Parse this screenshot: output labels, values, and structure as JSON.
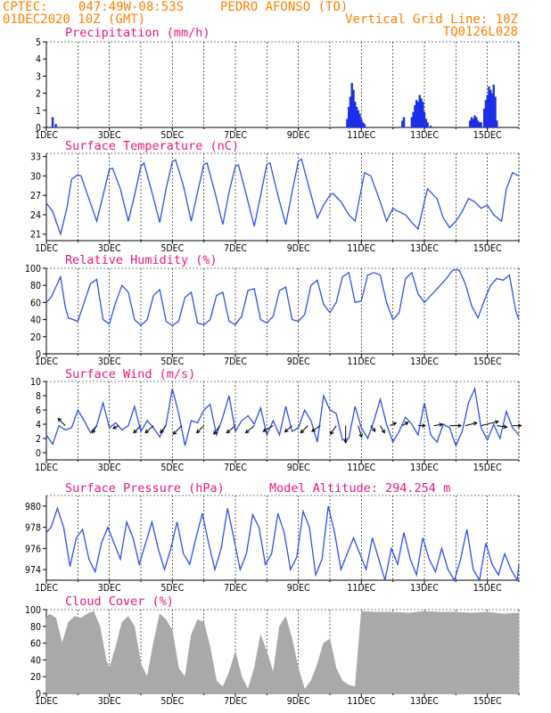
{
  "header": {
    "source": "CPTEC:",
    "coords": "047:49W-08:53S",
    "location": "PEDRO AFONSO (TO)",
    "run": "01DEC2020 10Z (GMT)",
    "grid_note": "Vertical Grid Line: 10Z",
    "code": "TQ0126L028"
  },
  "extra_title": "Model Altitude: 294.254 m",
  "colors": {
    "header": "#ff7f00",
    "title": "#e8167f",
    "series": "#3050e8",
    "bars": "#1c2fe8",
    "wind": "#000000",
    "cloud": "#a9a9a9"
  },
  "chart_data": [
    {
      "id": "precip",
      "type": "bar",
      "title": "Precipitation (mm/h)",
      "ylim": [
        0,
        5
      ],
      "yticks": [
        0,
        1,
        2,
        3,
        4,
        5
      ],
      "xticks": [
        "1DEC",
        "3DEC",
        "5DEC",
        "7DEC",
        "9DEC",
        "11DEC",
        "13DEC",
        "15DEC"
      ],
      "x": [
        0.2,
        0.3,
        9.55,
        9.6,
        9.65,
        9.7,
        9.75,
        9.8,
        9.85,
        9.9,
        9.95,
        10.0,
        10.05,
        10.1,
        11.3,
        11.35,
        11.6,
        11.65,
        11.7,
        11.75,
        11.8,
        11.85,
        11.9,
        11.95,
        12.0,
        12.05,
        12.1,
        12.2,
        13.45,
        13.5,
        13.55,
        13.6,
        13.65,
        13.7,
        13.75,
        13.8,
        13.9,
        13.95,
        14.0,
        14.05,
        14.1,
        14.15,
        14.2,
        14.25,
        14.3
      ],
      "values": [
        0.6,
        0.2,
        0.5,
        1.2,
        1.8,
        2.6,
        2.2,
        1.5,
        1.2,
        1.0,
        0.8,
        0.5,
        0.3,
        0.2,
        0.4,
        0.6,
        0.6,
        0.9,
        1.3,
        1.6,
        1.5,
        1.9,
        1.7,
        1.5,
        0.9,
        0.5,
        0.3,
        0.1,
        0.4,
        0.6,
        0.5,
        0.7,
        0.6,
        0.4,
        0.3,
        0.3,
        1.1,
        1.6,
        1.9,
        2.4,
        2.2,
        2.0,
        2.5,
        1.8,
        0.4
      ]
    },
    {
      "id": "temp",
      "type": "line",
      "title": "Surface Temperature (nC)",
      "ylim": [
        20,
        33.5
      ],
      "yticks": [
        21,
        24,
        27,
        30,
        33
      ],
      "xticks": [
        "1DEC",
        "3DEC",
        "5DEC",
        "7DEC",
        "9DEC",
        "11DEC",
        "13DEC",
        "15DEC"
      ],
      "x": [
        0,
        0.2,
        0.45,
        0.65,
        0.8,
        1.0,
        1.1,
        1.35,
        1.6,
        1.8,
        2.0,
        2.1,
        2.35,
        2.6,
        2.8,
        3.0,
        3.1,
        3.35,
        3.6,
        3.8,
        4.0,
        4.1,
        4.35,
        4.6,
        4.8,
        5.0,
        5.1,
        5.35,
        5.6,
        5.8,
        6.0,
        6.1,
        6.35,
        6.6,
        6.8,
        7.0,
        7.1,
        7.35,
        7.6,
        7.8,
        8.0,
        8.1,
        8.35,
        8.6,
        8.8,
        9.0,
        9.1,
        9.35,
        9.6,
        9.8,
        10.0,
        10.1,
        10.3,
        10.6,
        10.8,
        11.0,
        11.1,
        11.4,
        11.6,
        11.8,
        12.0,
        12.1,
        12.4,
        12.6,
        12.8,
        13.0,
        13.2,
        13.4,
        13.6,
        13.8,
        14.0,
        14.2,
        14.45,
        14.6,
        14.8,
        15.0
      ],
      "values": [
        25.8,
        24.5,
        21.0,
        25.0,
        29.5,
        30.2,
        30.0,
        26.5,
        23.0,
        27.0,
        31.0,
        31.2,
        28.0,
        23.0,
        27.0,
        31.5,
        32.0,
        27.5,
        22.8,
        28.0,
        32.2,
        32.5,
        28.5,
        23.0,
        27.5,
        31.8,
        32.0,
        27.5,
        22.5,
        27.5,
        31.5,
        31.7,
        27.0,
        22.2,
        27.0,
        31.8,
        32.0,
        27.0,
        22.5,
        27.5,
        32.3,
        32.6,
        28.0,
        23.5,
        25.5,
        27.0,
        27.3,
        26.0,
        24.0,
        23.0,
        28.0,
        30.5,
        30.0,
        26.0,
        23.0,
        25.0,
        24.7,
        24.0,
        22.8,
        21.8,
        26.0,
        28.0,
        26.5,
        23.5,
        22.0,
        23.0,
        24.5,
        26.5,
        26.0,
        25.0,
        25.5,
        24.0,
        23.0,
        28.0,
        30.5,
        30.0
      ]
    },
    {
      "id": "rh",
      "type": "line",
      "title": "Relative Humidity (%)",
      "ylim": [
        0,
        100
      ],
      "yticks": [
        0,
        20,
        40,
        60,
        80,
        100
      ],
      "xticks": [
        "1DEC",
        "3DEC",
        "5DEC",
        "7DEC",
        "9DEC",
        "11DEC",
        "13DEC",
        "15DEC"
      ],
      "x": [
        0,
        0.15,
        0.3,
        0.45,
        0.6,
        0.7,
        1.0,
        1.2,
        1.4,
        1.6,
        1.8,
        2.0,
        2.2,
        2.4,
        2.6,
        2.8,
        3.0,
        3.2,
        3.4,
        3.6,
        3.8,
        4.0,
        4.2,
        4.4,
        4.6,
        4.8,
        5.0,
        5.2,
        5.4,
        5.6,
        5.8,
        6.0,
        6.2,
        6.4,
        6.6,
        6.8,
        7.0,
        7.2,
        7.4,
        7.6,
        7.8,
        8.0,
        8.2,
        8.4,
        8.6,
        8.8,
        9.0,
        9.2,
        9.4,
        9.6,
        9.8,
        10.0,
        10.2,
        10.4,
        10.6,
        10.8,
        11.0,
        11.2,
        11.4,
        11.6,
        11.8,
        12.0,
        12.3,
        12.5,
        12.7,
        12.9,
        13.1,
        13.3,
        13.5,
        13.7,
        13.9,
        14.1,
        14.3,
        14.5,
        14.7,
        14.9,
        15.0
      ],
      "values": [
        60,
        66,
        78,
        90,
        55,
        42,
        38,
        60,
        82,
        87,
        40,
        35,
        60,
        80,
        72,
        40,
        33,
        40,
        68,
        75,
        38,
        33,
        38,
        66,
        72,
        36,
        34,
        40,
        68,
        72,
        38,
        34,
        44,
        74,
        76,
        40,
        36,
        44,
        74,
        78,
        40,
        38,
        46,
        80,
        86,
        58,
        48,
        60,
        90,
        95,
        60,
        62,
        92,
        95,
        92,
        60,
        40,
        48,
        88,
        95,
        70,
        60,
        72,
        80,
        88,
        98,
        98,
        82,
        56,
        42,
        62,
        80,
        88,
        86,
        92,
        50,
        40
      ]
    },
    {
      "id": "wind",
      "type": "line",
      "title": "Surface Wind (m/s)",
      "ylim": [
        -1,
        10
      ],
      "yticks": [
        0,
        2,
        4,
        6,
        8,
        10
      ],
      "xticks": [
        "1DEC",
        "3DEC",
        "5DEC",
        "7DEC",
        "9DEC",
        "11DEC",
        "13DEC",
        "15DEC"
      ],
      "x": [
        0,
        0.2,
        0.4,
        0.6,
        0.8,
        1.0,
        1.2,
        1.4,
        1.6,
        1.8,
        2.0,
        2.2,
        2.4,
        2.6,
        2.8,
        3.0,
        3.2,
        3.4,
        3.6,
        3.8,
        4.0,
        4.2,
        4.4,
        4.6,
        4.8,
        5.0,
        5.2,
        5.4,
        5.6,
        5.8,
        6.0,
        6.2,
        6.4,
        6.6,
        6.8,
        7.0,
        7.2,
        7.4,
        7.6,
        7.8,
        8.0,
        8.2,
        8.4,
        8.6,
        8.8,
        9.0,
        9.2,
        9.4,
        9.6,
        9.8,
        10.0,
        10.2,
        10.4,
        10.6,
        10.8,
        11.0,
        11.2,
        11.4,
        11.6,
        11.8,
        12.0,
        12.2,
        12.4,
        12.6,
        12.8,
        13.0,
        13.2,
        13.4,
        13.6,
        13.8,
        14.0,
        14.2,
        14.4,
        14.6,
        14.8,
        15.0
      ],
      "values": [
        2.5,
        1.2,
        3.8,
        3.2,
        3.5,
        6.0,
        4.5,
        2.8,
        3.8,
        7.0,
        3.5,
        4.2,
        3.2,
        3.8,
        6.5,
        3.0,
        4.5,
        3.5,
        2.2,
        4.0,
        9.0,
        5.5,
        1.0,
        4.5,
        4.2,
        6.0,
        6.8,
        2.5,
        5.0,
        8.0,
        3.0,
        4.5,
        5.2,
        4.0,
        6.3,
        2.5,
        4.5,
        2.5,
        6.5,
        3.0,
        3.5,
        6.0,
        4.5,
        1.5,
        8.0,
        6.0,
        5.5,
        1.8,
        2.0,
        6.5,
        3.5,
        2.0,
        4.5,
        7.5,
        4.0,
        1.5,
        3.0,
        5.0,
        4.0,
        2.5,
        7.0,
        2.5,
        1.5,
        4.0,
        3.5,
        1.0,
        3.0,
        7.0,
        9.0,
        3.5,
        1.8,
        4.0,
        2.0,
        5.8,
        3.5,
        2.5
      ],
      "arrows": {
        "x": [
          0.6,
          1.6,
          2.3,
          3.0,
          3.4,
          3.8,
          4.3,
          5.0,
          5.5,
          6.0,
          6.6,
          7.2,
          7.8,
          8.3,
          8.7,
          9.2,
          9.5,
          9.9,
          10.3,
          10.6,
          10.9,
          11.3,
          11.8,
          12.3,
          12.8,
          13.3,
          13.8,
          14.3,
          14.8
        ],
        "u": [
          -2.5,
          -1.5,
          -2,
          -2.5,
          -2.8,
          -2,
          -3,
          -2.5,
          -2,
          -3,
          -3,
          -3.5,
          -2.5,
          -2.5,
          -3,
          -2,
          0,
          1.2,
          1.5,
          1.5,
          2.2,
          2,
          2.5,
          3,
          4,
          4,
          6,
          3.5,
          3
        ],
        "v": [
          2.5,
          -2.5,
          -1,
          -2.5,
          -2.5,
          -2.5,
          -3,
          -2.5,
          -3,
          -2.5,
          -2.5,
          -2,
          -2.2,
          -2.5,
          -2,
          -3,
          -6,
          -4,
          -2,
          -2.5,
          1,
          1.2,
          0,
          0.5,
          0,
          1,
          1.5,
          -0.5,
          0
        ]
      }
    },
    {
      "id": "pres",
      "type": "line",
      "title": "Surface Pressure (hPa)",
      "ylim": [
        973,
        981
      ],
      "yticks": [
        974,
        976,
        978,
        980
      ],
      "xticks": [
        "1DEC",
        "3DEC",
        "5DEC",
        "7DEC",
        "9DEC",
        "11DEC",
        "13DEC",
        "15DEC"
      ],
      "x": [
        0,
        0.15,
        0.35,
        0.55,
        0.75,
        0.95,
        1.15,
        1.35,
        1.55,
        1.75,
        1.95,
        2.15,
        2.35,
        2.55,
        2.75,
        2.95,
        3.15,
        3.35,
        3.55,
        3.75,
        3.95,
        4.15,
        4.35,
        4.55,
        4.75,
        4.95,
        5.15,
        5.35,
        5.55,
        5.75,
        5.95,
        6.15,
        6.35,
        6.55,
        6.75,
        6.95,
        7.15,
        7.35,
        7.55,
        7.75,
        7.95,
        8.15,
        8.35,
        8.55,
        8.75,
        8.95,
        9.15,
        9.35,
        9.55,
        9.75,
        9.95,
        10.15,
        10.35,
        10.55,
        10.75,
        10.95,
        11.15,
        11.35,
        11.55,
        11.75,
        11.95,
        12.15,
        12.35,
        12.55,
        12.75,
        12.95,
        13.15,
        13.35,
        13.55,
        13.75,
        13.95,
        14.15,
        14.35,
        14.55,
        14.75,
        14.95,
        15.0
      ],
      "values": [
        977.5,
        978.0,
        979.8,
        978.0,
        974.3,
        977.0,
        977.8,
        975.0,
        973.8,
        976.5,
        978.0,
        976.5,
        975.0,
        978.5,
        977.0,
        974.5,
        976.5,
        978.5,
        976.0,
        974.0,
        976.0,
        978.5,
        975.5,
        974.5,
        977.0,
        979.3,
        976.5,
        974.0,
        976.0,
        979.8,
        977.0,
        974.0,
        975.5,
        979.2,
        978.0,
        974.5,
        975.5,
        979.3,
        977.5,
        974.0,
        975.2,
        979.5,
        978.0,
        973.5,
        975.0,
        980.0,
        977.5,
        974.0,
        975.5,
        977.0,
        975.5,
        974.0,
        977.0,
        975.0,
        973.0,
        976.0,
        974.5,
        977.5,
        975.0,
        973.5,
        977.0,
        975.0,
        973.8,
        976.0,
        974.0,
        973.0,
        975.0,
        977.8,
        974.0,
        973.0,
        976.5,
        974.5,
        973.5,
        975.5,
        974.0,
        973.0,
        974.5
      ]
    },
    {
      "id": "cloud",
      "type": "area",
      "title": "Cloud Cover (%)",
      "ylim": [
        0,
        100
      ],
      "yticks": [
        0,
        20,
        40,
        60,
        80,
        100
      ],
      "xticks": [
        "1DEC",
        "3DEC",
        "5DEC",
        "7DEC",
        "9DEC",
        "11DEC",
        "13DEC",
        "15DEC"
      ],
      "x": [
        0,
        0.1,
        0.3,
        0.5,
        0.7,
        0.9,
        1.1,
        1.3,
        1.5,
        1.7,
        1.9,
        2.0,
        2.2,
        2.4,
        2.6,
        2.8,
        3.0,
        3.2,
        3.4,
        3.6,
        3.8,
        4.0,
        4.2,
        4.4,
        4.6,
        4.8,
        5.0,
        5.2,
        5.4,
        5.6,
        5.8,
        6.0,
        6.2,
        6.4,
        6.6,
        6.8,
        7.0,
        7.2,
        7.4,
        7.6,
        7.8,
        8.0,
        8.2,
        8.4,
        8.6,
        8.8,
        9.0,
        9.2,
        9.4,
        9.6,
        9.8,
        10.0,
        10.5,
        11.0,
        11.5,
        12.0,
        12.5,
        13.0,
        13.5,
        14.0,
        14.5,
        15.0
      ],
      "values": [
        90,
        95,
        90,
        60,
        85,
        92,
        90,
        95,
        98,
        80,
        40,
        30,
        55,
        85,
        92,
        80,
        35,
        20,
        60,
        95,
        88,
        75,
        30,
        20,
        70,
        88,
        85,
        55,
        15,
        8,
        25,
        50,
        20,
        5,
        30,
        70,
        50,
        25,
        80,
        92,
        65,
        30,
        5,
        15,
        35,
        60,
        65,
        30,
        15,
        10,
        8,
        98,
        97,
        97,
        96,
        98,
        97,
        97,
        96,
        97,
        95,
        96
      ]
    }
  ]
}
